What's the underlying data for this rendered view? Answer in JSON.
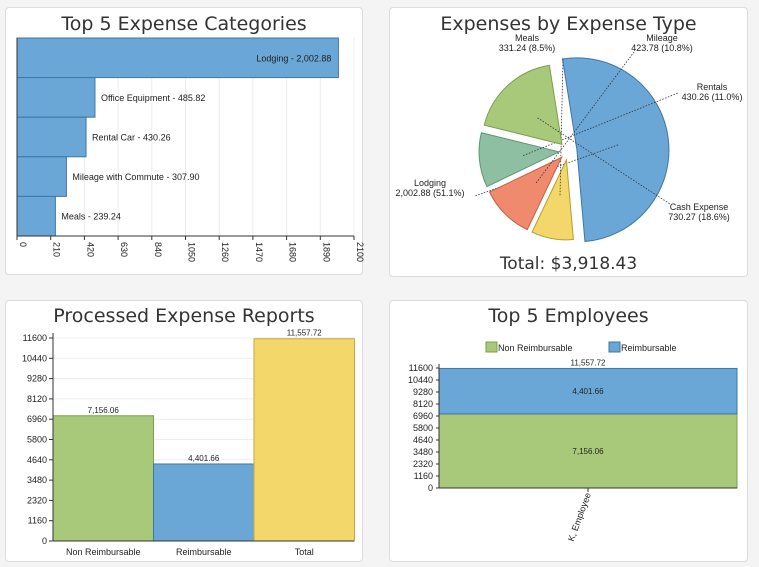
{
  "panels": {
    "top_categories": {
      "title": "Top 5 Expense Categories"
    },
    "expense_type": {
      "title": "Expenses by Expense Type",
      "total": "Total: $3,918.43"
    },
    "processed": {
      "title": "Processed Expense Reports"
    },
    "top_employees": {
      "title": "Top 5 Employees"
    }
  },
  "chart_data": [
    {
      "type": "bar",
      "orientation": "horizontal",
      "title": "Top 5 Expense Categories",
      "categories": [
        "Lodging",
        "Office Equipment",
        "Rental Car",
        "Mileage with Commute",
        "Meals"
      ],
      "values": [
        2002.88,
        485.82,
        430.26,
        307.9,
        239.24
      ],
      "labels": [
        "Lodging - 2,002.88",
        "Office Equipment - 485.82",
        "Rental Car - 430.26",
        "Mileage with Commute - 307.90",
        "Meals - 239.24"
      ],
      "xlim": [
        0,
        2100
      ],
      "xticks": [
        "0",
        "210",
        "420",
        "630",
        "840",
        "1050",
        "1260",
        "1470",
        "1680",
        "1890",
        "2100"
      ],
      "color": "#6aa6d6"
    },
    {
      "type": "pie",
      "title": "Expenses by Expense Type",
      "slices": [
        {
          "name": "Lodging",
          "value": 2002.88,
          "label_name": "Lodging",
          "label_value": "2,002.88 (51.1%)",
          "color": "#6aa6d6"
        },
        {
          "name": "Meals",
          "value": 331.24,
          "label_name": "Meals",
          "label_value": "331.24 (8.5%)",
          "color": "#f3d76b"
        },
        {
          "name": "Mileage",
          "value": 423.78,
          "label_name": "Mileage",
          "label_value": "423.78 (10.8%)",
          "color": "#f08a6e"
        },
        {
          "name": "Rentals",
          "value": 430.26,
          "label_name": "Rentals",
          "label_value": "430.26 (11.0%)",
          "color": "#8fbfa3"
        },
        {
          "name": "Cash Expense",
          "value": 730.27,
          "label_name": "Cash Expense",
          "label_value": "730.27 (18.6%)",
          "color": "#a8c97a"
        }
      ]
    },
    {
      "type": "bar",
      "title": "Processed Expense Reports",
      "categories": [
        "Non Reimbursable",
        "Reimbursable",
        "Total"
      ],
      "values": [
        7156.06,
        4401.66,
        11557.72
      ],
      "value_labels": [
        "7,156.06",
        "4,401.66",
        "11,557.72"
      ],
      "colors": [
        "#a8c97a",
        "#6aa6d6",
        "#f3d76b"
      ],
      "ylim": [
        0,
        11600
      ],
      "yticks": [
        "0",
        "1160",
        "2320",
        "3480",
        "4640",
        "5800",
        "6960",
        "8120",
        "9280",
        "10440",
        "11600"
      ]
    },
    {
      "type": "bar",
      "stacked": true,
      "title": "Top 5 Employees",
      "categories": [
        "K, Employee"
      ],
      "series": [
        {
          "name": "Non Reimbursable",
          "values": [
            7156.06
          ],
          "value_label": "7,156.06",
          "color": "#a8c97a"
        },
        {
          "name": "Reimbursable",
          "values": [
            4401.66
          ],
          "value_label": "4,401.66",
          "color": "#6aa6d6"
        }
      ],
      "total_label": "11,557.72",
      "ylim": [
        0,
        11600
      ],
      "yticks": [
        "0",
        "1160",
        "2320",
        "3480",
        "4640",
        "5800",
        "6960",
        "8120",
        "9280",
        "10440",
        "11600"
      ],
      "legend": "top"
    }
  ]
}
